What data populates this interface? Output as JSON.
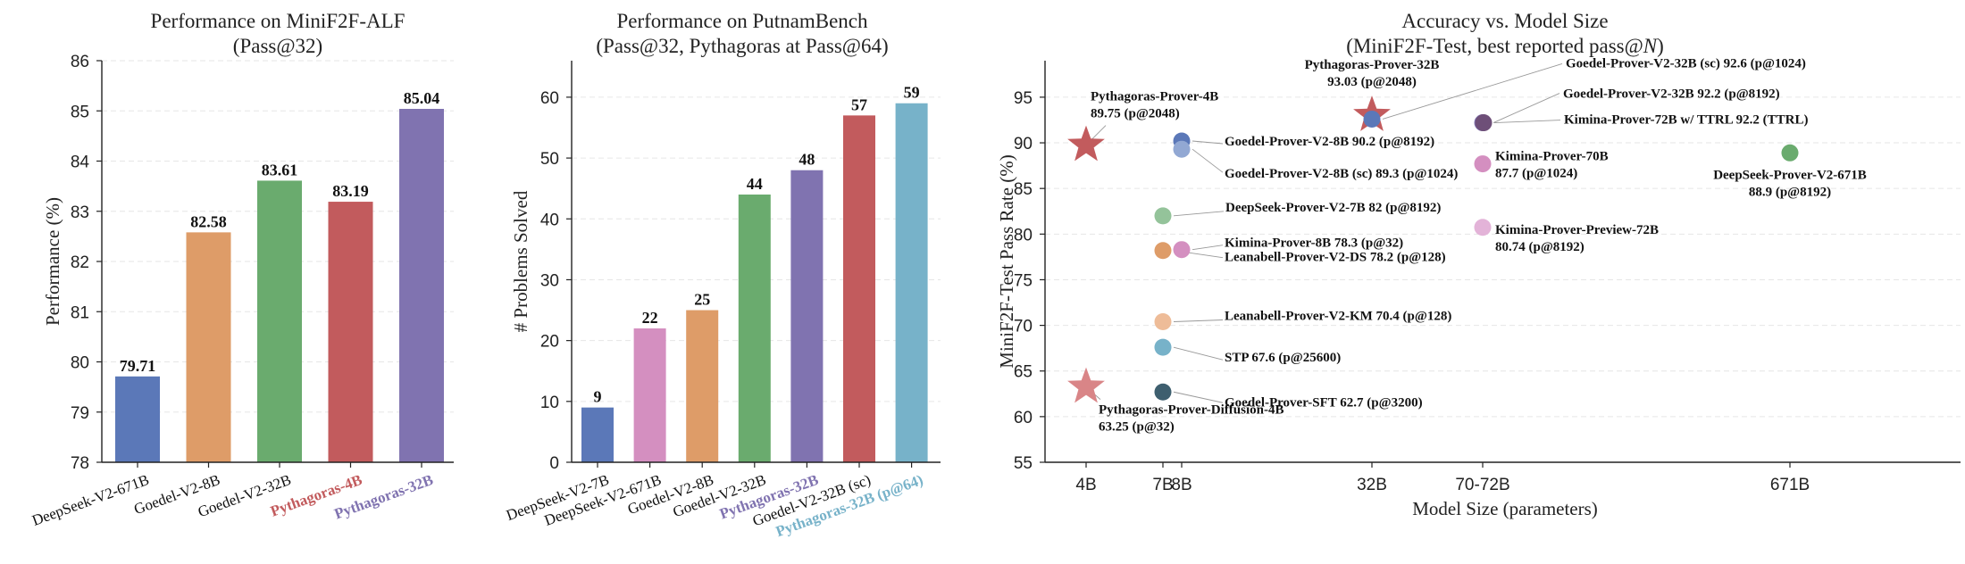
{
  "chart_data": [
    {
      "type": "bar",
      "title": "Performance on MiniF2F-ALF",
      "subtitle": "(Pass@32)",
      "xlabel": "",
      "ylabel": "Performance (%)",
      "ylim": [
        78,
        86
      ],
      "yticks": [
        78,
        79,
        80,
        81,
        82,
        83,
        84,
        85,
        86
      ],
      "grid": true,
      "categories": [
        "DeepSeek-V2-671B",
        "Goedel-V2-8B",
        "Goedel-V2-32B",
        "Pythagoras-4B",
        "Pythagoras-32B"
      ],
      "values": [
        79.71,
        82.58,
        83.61,
        83.19,
        85.04
      ],
      "value_labels": [
        "79.71",
        "82.58",
        "83.61",
        "83.19",
        "85.04"
      ],
      "colors": [
        "#5b78b8",
        "#de9c68",
        "#6aab6e",
        "#c25b5d",
        "#8073b0"
      ],
      "label_colors": [
        "#111111",
        "#111111",
        "#111111",
        "#c25b5d",
        "#8073b0"
      ],
      "label_bold": [
        false,
        false,
        false,
        true,
        true
      ]
    },
    {
      "type": "bar",
      "title": "Performance on PutnamBench",
      "subtitle": "(Pass@32, Pythagoras at Pass@64)",
      "xlabel": "",
      "ylabel": "# Problems Solved",
      "ylim": [
        0,
        66
      ],
      "yticks": [
        0,
        10,
        20,
        30,
        40,
        50,
        60
      ],
      "grid": true,
      "categories": [
        "DeepSeek-V2-7B",
        "DeepSeek-V2-671B",
        "Goedel-V2-8B",
        "Goedel-V2-32B",
        "Pythagoras-32B",
        "Goedel-V2-32B (sc)",
        "Pythagoras-32B (p@64)"
      ],
      "values": [
        9,
        22,
        25,
        44,
        48,
        57,
        59
      ],
      "value_labels": [
        "9",
        "22",
        "25",
        "44",
        "48",
        "57",
        "59"
      ],
      "colors": [
        "#5b78b8",
        "#d48fc0",
        "#de9c68",
        "#6aab6e",
        "#8073b0",
        "#c25b5d",
        "#77b2c9"
      ],
      "label_colors": [
        "#111111",
        "#111111",
        "#111111",
        "#111111",
        "#8073b0",
        "#111111",
        "#77b2c9"
      ],
      "label_bold": [
        false,
        false,
        false,
        false,
        true,
        false,
        true
      ]
    },
    {
      "type": "scatter",
      "title": "Accuracy vs. Model Size",
      "subtitle": "(MiniF2F-Test, best reported pass@N)",
      "xlabel": "Model Size (parameters)",
      "ylabel": "MiniF2F-Test Pass Rate (%)",
      "ylim": [
        55,
        99
      ],
      "yticks": [
        55,
        60,
        65,
        70,
        75,
        80,
        85,
        90,
        95
      ],
      "x_categories": [
        "4B",
        "7B",
        "8B",
        "32B",
        "70-72B",
        "671B"
      ],
      "xtick_labels": [
        "4B",
        "7B",
        "8B",
        "32B",
        "70-72B",
        "671B"
      ],
      "grid": true,
      "points": [
        {
          "x": "4B",
          "y": 89.75,
          "label": "Pythagoras-Prover-4B\n89.75 (p@2048)",
          "color": "#c25b5d",
          "marker": "star",
          "highlight": true
        },
        {
          "x": "4B",
          "y": 63.25,
          "label": "Pythagoras-Prover-Diffusion-4B\n63.25 (p@32)",
          "color": "#d98587",
          "marker": "star",
          "highlight": true
        },
        {
          "x": "32B",
          "y": 93.03,
          "label": "Pythagoras-Prover-32B\n93.03 (p@2048)",
          "color": "#c25b5d",
          "marker": "star",
          "highlight": true
        },
        {
          "x": "7B",
          "y": 82,
          "label": "DeepSeek-Prover-V2-7B  82 (p@8192)",
          "color": "#94c39a",
          "marker": "circle"
        },
        {
          "x": "7B",
          "y": 78.2,
          "label": "Leanabell-Prover-V2-DS  78.2 (p@128)",
          "color": "#de9c68",
          "marker": "circle"
        },
        {
          "x": "7B",
          "y": 70.4,
          "label": "Leanabell-Prover-V2-KM  70.4 (p@128)",
          "color": "#eebc98",
          "marker": "circle"
        },
        {
          "x": "7B",
          "y": 67.6,
          "label": "STP  67.6 (p@25600)",
          "color": "#77b2c9",
          "marker": "circle"
        },
        {
          "x": "7B",
          "y": 62.7,
          "label": "Goedel-Prover-SFT  62.7 (p@3200)",
          "color": "#3e5f6f",
          "marker": "circle"
        },
        {
          "x": "8B",
          "y": 90.2,
          "label": "Goedel-Prover-V2-8B  90.2 (p@8192)",
          "color": "#5b78b8",
          "marker": "circle"
        },
        {
          "x": "8B",
          "y": 89.3,
          "label": "Goedel-Prover-V2-8B (sc)  89.3 (p@1024)",
          "color": "#92a8d3",
          "marker": "circle"
        },
        {
          "x": "8B",
          "y": 78.3,
          "label": "Kimina-Prover-8B  78.3 (p@32)",
          "color": "#d48fc0",
          "marker": "circle"
        },
        {
          "x": "32B",
          "y": 92.6,
          "label": "Goedel-Prover-V2-32B (sc)  92.6 (p@1024)",
          "color": "#5b78b8",
          "marker": "circle"
        },
        {
          "x": "70-72B",
          "y": 92.2,
          "label": "Goedel-Prover-V2-32B  92.2 (p@8192)",
          "color": "#8073b0",
          "marker": "circle"
        },
        {
          "x": "70-72B",
          "y": 92.2,
          "label": "Kimina-Prover-72B w/ TTRL  92.2 (TTRL)",
          "color": "#6e4f78",
          "marker": "circle"
        },
        {
          "x": "70-72B",
          "y": 87.7,
          "label": "Kimina-Prover-70B\n87.7 (p@1024)",
          "color": "#d48fc0",
          "marker": "circle"
        },
        {
          "x": "70-72B",
          "y": 80.74,
          "label": "Kimina-Prover-Preview-72B\n80.74 (p@8192)",
          "color": "#e3b3d8",
          "marker": "circle"
        },
        {
          "x": "671B",
          "y": 88.9,
          "label": "DeepSeek-Prover-V2-671B\n88.9 (p@8192)",
          "color": "#6aab6e",
          "marker": "circle"
        }
      ]
    }
  ]
}
